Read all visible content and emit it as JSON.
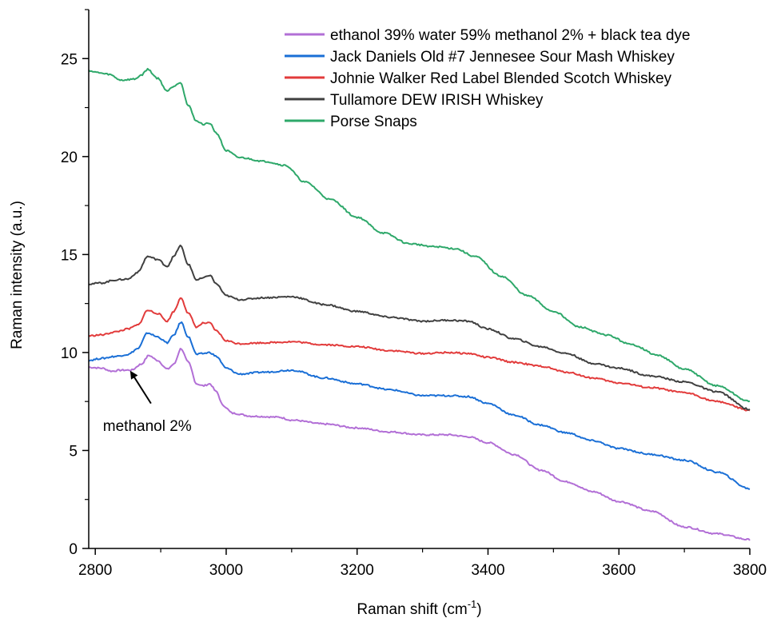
{
  "chart_data": {
    "type": "line",
    "title": "",
    "xlabel": "Raman shift (cm",
    "xlabel_sup": "-1",
    "xlabel_close": ")",
    "ylabel": "Raman intensity (a.u.)",
    "xlim": [
      2790,
      3800
    ],
    "ylim": [
      0,
      27.5
    ],
    "xticks": [
      2800,
      3000,
      3200,
      3400,
      3600,
      3800
    ],
    "yticks": [
      0,
      5,
      10,
      15,
      20,
      25
    ],
    "xtick_labels": [
      "2800",
      "3000",
      "3200",
      "3400",
      "3600",
      "3800"
    ],
    "ytick_labels": [
      "0",
      "5",
      "10",
      "15",
      "20",
      "25"
    ],
    "grid": false,
    "legend_position": "top-right",
    "annotation": {
      "text": "methanol 2%",
      "arrow_to": [
        2840,
        9.0
      ],
      "arrow_from": [
        2868,
        7.4
      ],
      "text_at": [
        2855,
        6.2
      ]
    },
    "series": [
      {
        "name": "ethanol 39% water 59% methanol 2% + black tea dye",
        "color": "#b26fd6",
        "points": [
          [
            2790,
            9.25
          ],
          [
            2810,
            9.2
          ],
          [
            2825,
            9.05
          ],
          [
            2840,
            9.1
          ],
          [
            2855,
            9.1
          ],
          [
            2870,
            9.4
          ],
          [
            2882,
            9.85
          ],
          [
            2895,
            9.6
          ],
          [
            2910,
            9.15
          ],
          [
            2920,
            9.4
          ],
          [
            2931,
            10.2
          ],
          [
            2942,
            9.5
          ],
          [
            2955,
            8.4
          ],
          [
            2965,
            8.3
          ],
          [
            2975,
            8.4
          ],
          [
            2985,
            8.0
          ],
          [
            2995,
            7.3
          ],
          [
            3010,
            6.9
          ],
          [
            3040,
            6.75
          ],
          [
            3080,
            6.7
          ],
          [
            3100,
            6.55
          ],
          [
            3150,
            6.35
          ],
          [
            3200,
            6.15
          ],
          [
            3250,
            5.95
          ],
          [
            3300,
            5.8
          ],
          [
            3340,
            5.8
          ],
          [
            3370,
            5.7
          ],
          [
            3400,
            5.4
          ],
          [
            3440,
            4.8
          ],
          [
            3480,
            4.0
          ],
          [
            3520,
            3.4
          ],
          [
            3560,
            2.9
          ],
          [
            3600,
            2.4
          ],
          [
            3650,
            1.9
          ],
          [
            3700,
            1.1
          ],
          [
            3750,
            0.75
          ],
          [
            3800,
            0.45
          ]
        ]
      },
      {
        "name": "Jack Daniels Old #7 Jennesee Sour Mash Whiskey",
        "color": "#1a6fd6",
        "points": [
          [
            2790,
            9.6
          ],
          [
            2810,
            9.7
          ],
          [
            2830,
            9.8
          ],
          [
            2850,
            9.9
          ],
          [
            2865,
            10.2
          ],
          [
            2880,
            11.0
          ],
          [
            2895,
            10.8
          ],
          [
            2910,
            10.5
          ],
          [
            2920,
            10.9
          ],
          [
            2931,
            11.55
          ],
          [
            2942,
            10.8
          ],
          [
            2955,
            9.9
          ],
          [
            2965,
            9.95
          ],
          [
            2975,
            10.0
          ],
          [
            2985,
            9.8
          ],
          [
            3000,
            9.2
          ],
          [
            3020,
            8.9
          ],
          [
            3060,
            9.0
          ],
          [
            3100,
            9.1
          ],
          [
            3150,
            8.7
          ],
          [
            3200,
            8.4
          ],
          [
            3250,
            8.1
          ],
          [
            3300,
            7.8
          ],
          [
            3340,
            7.8
          ],
          [
            3370,
            7.75
          ],
          [
            3400,
            7.4
          ],
          [
            3440,
            6.8
          ],
          [
            3480,
            6.3
          ],
          [
            3520,
            5.9
          ],
          [
            3560,
            5.5
          ],
          [
            3600,
            5.1
          ],
          [
            3650,
            4.8
          ],
          [
            3700,
            4.5
          ],
          [
            3750,
            3.9
          ],
          [
            3800,
            3.05
          ]
        ]
      },
      {
        "name": "Johnie Walker Red Label Blended Scotch Whiskey",
        "color": "#e23b3b",
        "points": [
          [
            2790,
            10.85
          ],
          [
            2810,
            10.9
          ],
          [
            2830,
            11.05
          ],
          [
            2850,
            11.2
          ],
          [
            2865,
            11.4
          ],
          [
            2880,
            12.15
          ],
          [
            2895,
            12.0
          ],
          [
            2910,
            11.6
          ],
          [
            2920,
            12.1
          ],
          [
            2931,
            12.8
          ],
          [
            2942,
            12.0
          ],
          [
            2955,
            11.3
          ],
          [
            2965,
            11.5
          ],
          [
            2975,
            11.5
          ],
          [
            2985,
            11.1
          ],
          [
            3000,
            10.6
          ],
          [
            3020,
            10.45
          ],
          [
            3060,
            10.5
          ],
          [
            3100,
            10.55
          ],
          [
            3150,
            10.4
          ],
          [
            3200,
            10.3
          ],
          [
            3250,
            10.1
          ],
          [
            3300,
            9.95
          ],
          [
            3340,
            10.0
          ],
          [
            3370,
            9.95
          ],
          [
            3400,
            9.75
          ],
          [
            3440,
            9.5
          ],
          [
            3480,
            9.3
          ],
          [
            3520,
            9.0
          ],
          [
            3560,
            8.7
          ],
          [
            3600,
            8.45
          ],
          [
            3650,
            8.2
          ],
          [
            3700,
            7.95
          ],
          [
            3750,
            7.5
          ],
          [
            3800,
            7.05
          ]
        ]
      },
      {
        "name": "Tullamore DEW IRISH Whiskey",
        "color": "#404040",
        "points": [
          [
            2790,
            13.5
          ],
          [
            2810,
            13.55
          ],
          [
            2830,
            13.7
          ],
          [
            2850,
            13.75
          ],
          [
            2865,
            14.1
          ],
          [
            2880,
            14.9
          ],
          [
            2895,
            14.75
          ],
          [
            2910,
            14.4
          ],
          [
            2920,
            14.9
          ],
          [
            2930,
            15.45
          ],
          [
            2942,
            14.5
          ],
          [
            2955,
            13.7
          ],
          [
            2965,
            13.8
          ],
          [
            2975,
            13.95
          ],
          [
            2985,
            13.5
          ],
          [
            3000,
            12.9
          ],
          [
            3020,
            12.7
          ],
          [
            3060,
            12.8
          ],
          [
            3100,
            12.85
          ],
          [
            3150,
            12.45
          ],
          [
            3200,
            12.1
          ],
          [
            3250,
            11.8
          ],
          [
            3300,
            11.6
          ],
          [
            3340,
            11.65
          ],
          [
            3370,
            11.6
          ],
          [
            3400,
            11.2
          ],
          [
            3440,
            10.7
          ],
          [
            3480,
            10.3
          ],
          [
            3520,
            9.95
          ],
          [
            3560,
            9.45
          ],
          [
            3600,
            9.2
          ],
          [
            3650,
            8.8
          ],
          [
            3700,
            8.5
          ],
          [
            3750,
            8.0
          ],
          [
            3800,
            7.1
          ]
        ]
      },
      {
        "name": "Porse Snaps",
        "color": "#2ea86a",
        "points": [
          [
            2790,
            24.4
          ],
          [
            2800,
            24.3
          ],
          [
            2820,
            24.2
          ],
          [
            2840,
            23.9
          ],
          [
            2860,
            23.95
          ],
          [
            2870,
            24.15
          ],
          [
            2880,
            24.45
          ],
          [
            2895,
            24.0
          ],
          [
            2910,
            23.35
          ],
          [
            2920,
            23.6
          ],
          [
            2930,
            23.8
          ],
          [
            2942,
            22.6
          ],
          [
            2955,
            21.8
          ],
          [
            2965,
            21.65
          ],
          [
            2975,
            21.7
          ],
          [
            2985,
            21.2
          ],
          [
            3000,
            20.3
          ],
          [
            3020,
            19.95
          ],
          [
            3060,
            19.75
          ],
          [
            3090,
            19.55
          ],
          [
            3120,
            18.7
          ],
          [
            3160,
            17.8
          ],
          [
            3200,
            16.9
          ],
          [
            3240,
            16.1
          ],
          [
            3280,
            15.55
          ],
          [
            3320,
            15.4
          ],
          [
            3350,
            15.3
          ],
          [
            3380,
            14.9
          ],
          [
            3420,
            13.9
          ],
          [
            3460,
            12.9
          ],
          [
            3500,
            12.1
          ],
          [
            3540,
            11.3
          ],
          [
            3580,
            10.9
          ],
          [
            3620,
            10.4
          ],
          [
            3660,
            9.85
          ],
          [
            3700,
            9.15
          ],
          [
            3750,
            8.3
          ],
          [
            3800,
            7.5
          ]
        ]
      }
    ]
  }
}
